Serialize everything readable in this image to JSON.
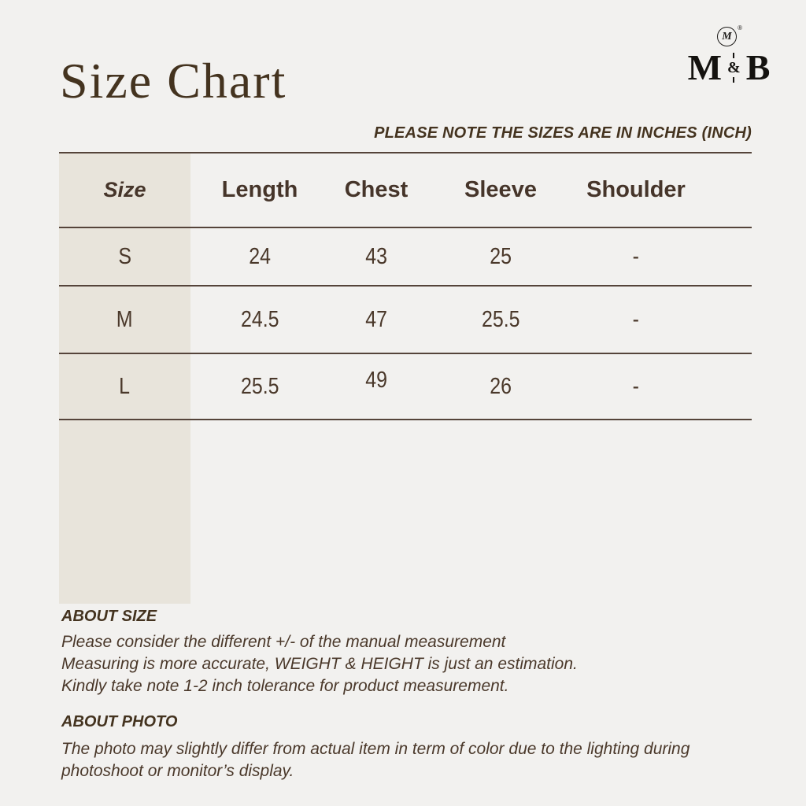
{
  "page": {
    "title": "Size Chart",
    "note": "PLEASE NOTE THE SIZES ARE IN INCHES (INCH)"
  },
  "logo": {
    "monogram": "M",
    "registered": "®",
    "letter_left": "M",
    "ampersand": "&",
    "letter_right": "B"
  },
  "table": {
    "columns": [
      "Size",
      "Length",
      "Chest",
      "Sleeve",
      "Shoulder"
    ],
    "rows": [
      {
        "size": "S",
        "length": "24",
        "chest": "43",
        "sleeve": "25",
        "shoulder": "-"
      },
      {
        "size": "M",
        "length": "24.5",
        "chest": "47",
        "sleeve": "25.5",
        "shoulder": "-"
      },
      {
        "size": "L",
        "length": "25.5",
        "chest": "49",
        "sleeve": "26",
        "shoulder": "-"
      }
    ]
  },
  "about_size": {
    "heading": "ABOUT SIZE",
    "lines": [
      "Please consider the different +/- of the manual measurement",
      "Measuring is more accurate, WEIGHT & HEIGHT is just an estimation.",
      "Kindly take note 1-2 inch tolerance for product measurement."
    ]
  },
  "about_photo": {
    "heading": "ABOUT PHOTO",
    "lines": [
      "The photo may slightly differ from actual item in term of color due to the lighting during",
      "photoshoot or monitor’s display."
    ]
  },
  "colors": {
    "background": "#f2f1ef",
    "size_column_background": "#e8e4db",
    "text": "#4a382a",
    "rule_line": "#55443a"
  }
}
